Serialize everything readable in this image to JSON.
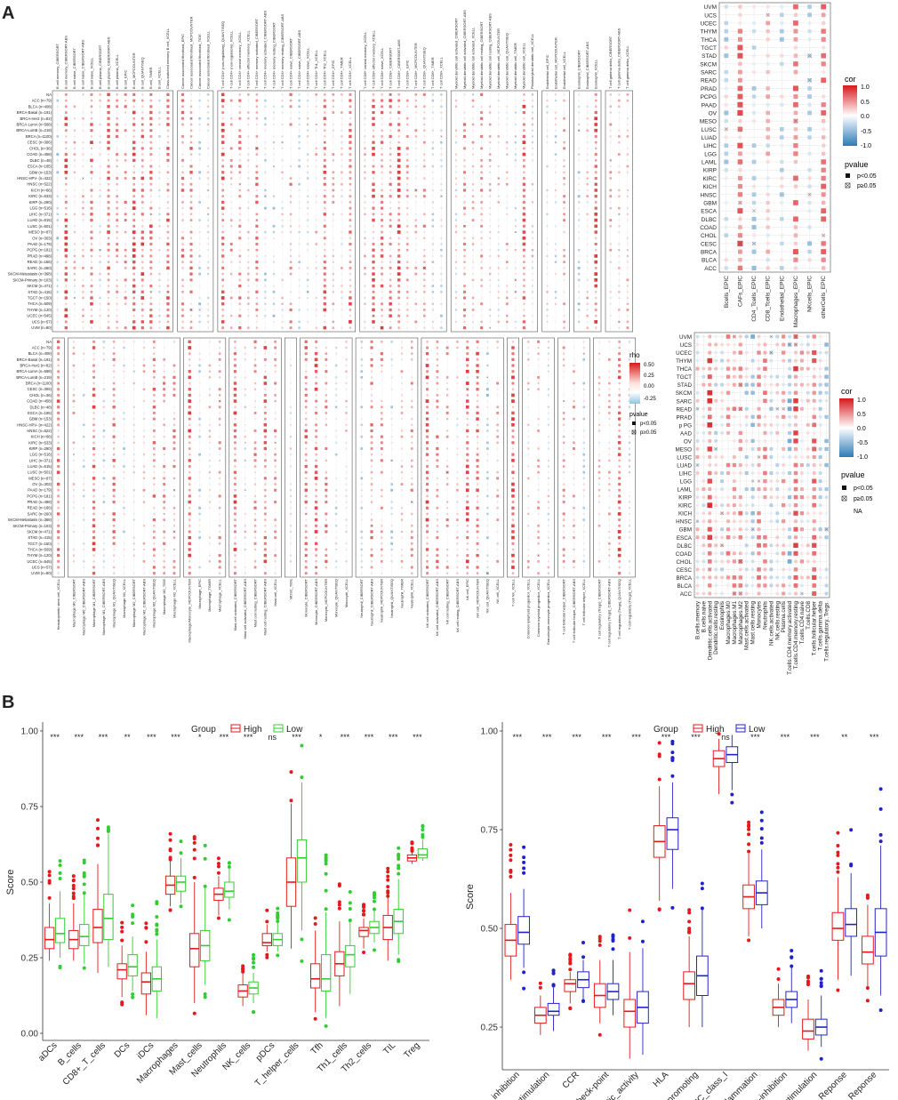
{
  "panels": {
    "a": "A",
    "b": "B"
  },
  "heatmap": {
    "cancers_tr": [
      "NA",
      "ACC (n=79)",
      "BLCA (n=408)",
      "BRCA-Basal (n=191)",
      "BRCA-Her2 (n=82)",
      "BRCA-LumA (n=568)",
      "BRCA-LumB (n=219)",
      "BRCA (n=1100)",
      "CESC (n=306)",
      "CHOL (n=36)",
      "COAD (n=458)",
      "DLBC (n=48)",
      "ESCA (n=185)",
      "GBM (n=153)",
      "HNSC-HPV- (n=422)",
      "HNSC (n=522)",
      "KICH (n=66)",
      "KIRC (n=533)",
      "KIRP (n=290)",
      "LGG (n=516)",
      "LIHC (n=371)",
      "LUAD (n=515)",
      "LUSC (n=501)",
      "MESO (n=87)",
      "OV (n=303)",
      "PAAD (n=179)",
      "PCPG (n=181)",
      "PRAD (n=498)",
      "READ (n=166)",
      "SARC (n=260)",
      "SKCM-Metastasis (n=368)",
      "SKCM-Primary (n=103)",
      "SKCM (n=471)",
      "STAD (n=415)",
      "TGCT (n=150)",
      "THCA (n=509)",
      "THYM (n=120)",
      "UCEC (n=545)",
      "UCS (n=57)",
      "UVM (n=80)"
    ],
    "top_cols": [
      "B cell memory_CIBERSORT",
      "B cell memory_CIBERSORT-ABS",
      "B cell naive_CIBERSORT",
      "B cell naive_CIBERSORT-ABS",
      "B cell naive_XCELL",
      "B cell plasma_CIBERSORT",
      "B cell plasma_CIBERSORT-ABS",
      "B cell plasma_XCELL",
      "B cell_EPIC",
      "B cell_MCPCOUNTER",
      "B cell_QUANTISEQ",
      "B cell_TIMER",
      "B cell_XCELL",
      "Class-switched memory B cell_XCELL",
      "Cancer associated fibroblast_EPIC",
      "Cancer associated fibroblast_MCPCOUNTER",
      "Cancer associated fibroblast_TIDE",
      "Cancer associated fibroblast_XCELL",
      "T cell CD4+ (non-regulatory)_QUANTISEQ",
      "T cell CD4+ (non-regulatory)_XCELL",
      "T cell CD4+ central memory_XCELL",
      "T cell CD4+ effector memory_XCELL",
      "T cell CD4+ memory activated_CIBERSORT",
      "T cell CD4+ memory activated_CIBERSORT-ABS",
      "T cell CD4+ memory resting_CIBERSORT",
      "T cell CD4+ memory resting_CIBERSORT-ABS",
      "T cell CD4+ naive_CIBERSORT",
      "T cell CD4+ naive_CIBERSORT-ABS",
      "T cell CD4+ naive_XCELL",
      "T cell CD4+ Th1_XCELL",
      "T cell CD4+ Th2_XCELL",
      "T cell CD4+_EPIC",
      "T cell CD4+_TIMER",
      "T cell CD4+_XCELL",
      "T cell CD8+ central memory_XCELL",
      "T cell CD8+ effector memory_XCELL",
      "T cell CD8+ naive_XCELL",
      "T cell CD8+_CIBERSORT",
      "T cell CD8+_CIBERSORT-ABS",
      "T cell CD8+_EPIC",
      "T cell CD8+_MCPCOUNTER",
      "T cell CD8+_QUANTISEQ",
      "T cell CD8+_TIMER",
      "T cell CD8+_XCELL",
      "Myeloid dendritic cell activated_CIBERSORT",
      "Myeloid dendritic cell activated_CIBERSORT-ABS",
      "Myeloid dendritic cell activated_XCELL",
      "Myeloid dendritic cell resting_CIBERSORT",
      "Myeloid dendritic cell resting_CIBERSORT-ABS",
      "Myeloid dendritic cell_MCPCOUNTER",
      "Myeloid dendritic cell_QUANTISEQ",
      "Myeloid dendritic cell_TIMER",
      "Myeloid dendritic cell_XCELL",
      "Plasmacytoid dendritic cell_XCELL",
      "Endothelial cell_EPIC",
      "Endothelial cell_MCPCOUNTER",
      "Endothelial cell_XCELL",
      "Eosinophil_CIBERSORT",
      "Eosinophil_CIBERSORT-ABS",
      "Eosinophil_XCELL",
      "T cell gamma delta_CIBERSORT",
      "T cell gamma delta_CIBERSORT-ABS",
      "T cell gamma delta_XCELL"
    ],
    "top_groups": [
      14,
      4,
      16,
      10,
      10,
      3,
      3,
      3
    ],
    "bottom_cols": [
      "Hematopoietic stem cell_XCELL",
      "Macrophage M0_CIBERSORT",
      "Macrophage M0_CIBERSORT-ABS",
      "Macrophage M1_CIBERSORT",
      "Macrophage M1_CIBERSORT-ABS",
      "Macrophage M1_QUANTISEQ",
      "Macrophage M1_XCELL",
      "Macrophage M2_CIBERSORT",
      "Macrophage M2_CIBERSORT-ABS",
      "Macrophage M2_QUANTISEQ",
      "Macrophage M2_TIDE",
      "Macrophage M2_XCELL",
      "Macrophage/Monocyte_MCPCOUNTER",
      "Macrophage_EPIC",
      "Macrophage_TIMER",
      "Macrophage_XCELL",
      "Mast cell activated_CIBERSORT",
      "Mast cell activated_CIBERSORT-ABS",
      "Mast cell resting_CIBERSORT",
      "Mast cell resting_CIBERSORT-ABS",
      "Mast cell_XCELL",
      "MDSC_TIDE",
      "Monocyte_CIBERSORT",
      "Monocyte_CIBERSORT-ABS",
      "Monocyte_MCPCOUNTER",
      "Monocyte_QUANTISEQ",
      "Monocyte_XCELL",
      "Neutrophil_CIBERSORT",
      "Neutrophil_CIBERSORT-ABS",
      "Neutrophil_MCPCOUNTER",
      "Neutrophil_QUANTISEQ",
      "Neutrophil_TIMER",
      "Neutrophil_XCELL",
      "NK cell activated_CIBERSORT",
      "NK cell activated_CIBERSORT-ABS",
      "NK cell resting_CIBERSORT",
      "NK cell resting_CIBERSORT-ABS",
      "NK cell_EPIC",
      "NK cell_MCPCOUNTER",
      "NK cell_QUANTISEQ",
      "NK cell_XCELL",
      "T cell NK_XCELL",
      "Common lymphoid progenitor_XCELL",
      "Common myeloid progenitor_XCELL",
      "Granulocyte-monocyte progenitor_XCELL",
      "T cell follicular helper_CIBERSORT",
      "T cell follicular helper_CIBERSORT-ABS",
      "T cell follicular helper_XCELL",
      "T cell regulatory (Tregs)_CIBERSORT",
      "T cell regulatory (Tregs)_CIBERSORT-ABS",
      "T cell regulatory (Tregs)_QUANTISEQ",
      "T cell regulatory (Tregs)_XCELL"
    ],
    "bottom_groups": [
      1,
      11,
      4,
      5,
      1,
      5,
      6,
      8,
      1,
      3,
      3,
      4
    ],
    "top_legend": {
      "title": "rho",
      "ticks": [
        "0.50",
        "0.25",
        "0.00",
        "-0.25"
      ]
    },
    "pvalue_legend": {
      "title": "pvalue",
      "items": [
        "p<0.05",
        "p≥0.05"
      ]
    },
    "right_cancers": [
      "UVM",
      "UCS",
      "UCEC",
      "THYM",
      "THCA",
      "TGCT",
      "STAD",
      "SKCM",
      "SARC",
      "READ",
      "PRAD",
      "PCPG",
      "PAAD",
      "OV",
      "MESO",
      "LUSC",
      "LUAD",
      "LIHC",
      "LGG",
      "LAML",
      "KIRP",
      "KIRC",
      "KICH",
      "HNSC",
      "GBM",
      "ESCA",
      "DLBC",
      "COAD",
      "CHOL",
      "CESC",
      "BRCA",
      "BLCA",
      "ACC"
    ],
    "epic_cols": [
      "Bcells_EPIC",
      "CAFs_EPIC",
      "CD4_Tcells_EPIC",
      "CD8_Tcells_EPIC",
      "Endothelial_EPIC",
      "Macrophages_EPIC",
      "NKcells_EPIC",
      "otherCells_EPIC"
    ],
    "cib_rows": [
      "UVM",
      "UCS",
      "UCEC",
      "THYM",
      "THCA",
      "TGCT",
      "STAD",
      "SKCM",
      "SARC",
      "READ",
      "PRAD",
      "p PG",
      "AAD",
      "OV",
      "MESO",
      "LUSC",
      "LUAD",
      "LIHC",
      "LGG",
      "LAML",
      "KIRP",
      "KIRC",
      "KICH",
      "HNSC",
      "GBM",
      "ESCA",
      "DLBC",
      "COAD",
      "CHOL",
      "CESC",
      "BRCA",
      "BLCA",
      "ACC"
    ],
    "cib_cols": [
      "B.cells.memory",
      "B.cells.naive",
      "Dendritic.cells.activated",
      "Dendritic.cells.resting",
      "Eosinophils",
      "Macrophages.M0",
      "Macrophages.M1",
      "Macrophages.M2",
      "Mast.cells.activated",
      "Mast.cells.resting",
      "Monocytes",
      "Neutrophils",
      "NK.cells.activated",
      "NK.cells.resting",
      "Plasma.cells",
      "T.cells.CD4.memory.activated",
      "T.cells.CD4.memory.resting",
      "T.cells.CD4.naive",
      "T.cells.CD8",
      "T.cells.follicular.helper",
      "T.cells.gamma.delta",
      "T.cells.regulatory..Tregs."
    ],
    "cor_legend": {
      "title": "cor",
      "ticks": [
        "1.0",
        "0.5",
        "0.0",
        "-0.5",
        "-1.0"
      ]
    },
    "pvalue_legend2": {
      "title": "pvalue",
      "items": [
        "p<0.05",
        "p≥0.05",
        "NA"
      ]
    }
  },
  "chart_data": [
    {
      "type": "box",
      "title": "",
      "xlabel": "",
      "ylabel": "Score",
      "ylim": [
        0,
        1.0
      ],
      "yticks": [
        "0.00",
        "0.25",
        "0.50",
        "0.75",
        "1.00"
      ],
      "legend_title": "Group",
      "series": [
        {
          "name": "High",
          "color": "#e31a1c"
        },
        {
          "name": "Low",
          "color": "#33cc33"
        }
      ],
      "categories": [
        "aDCs",
        "B_cells",
        "CD8+_T_cells",
        "DCs",
        "iDCs",
        "Macrophages",
        "Mast_cells",
        "Neutrophils",
        "NK_cells",
        "pDCs",
        "T_helper_cells",
        "Tfh",
        "Th1_cells",
        "Th2_cells",
        "TIL",
        "Treg"
      ],
      "significance": [
        "***",
        "***",
        "***",
        "**",
        "***",
        "***",
        "*",
        "***",
        "***",
        "ns",
        "***",
        "*",
        "***",
        "***",
        "***",
        "***"
      ],
      "boxes": [
        [
          [
            0.24,
            0.28,
            0.31,
            0.35,
            0.43
          ],
          [
            0.25,
            0.3,
            0.33,
            0.38,
            0.47
          ]
        ],
        [
          [
            0.24,
            0.28,
            0.31,
            0.34,
            0.43
          ],
          [
            0.23,
            0.29,
            0.32,
            0.36,
            0.46
          ]
        ],
        [
          [
            0.2,
            0.3,
            0.35,
            0.41,
            0.56
          ],
          [
            0.22,
            0.31,
            0.38,
            0.46,
            0.66
          ]
        ],
        [
          [
            0.12,
            0.18,
            0.21,
            0.23,
            0.29
          ],
          [
            0.14,
            0.19,
            0.22,
            0.26,
            0.32
          ]
        ],
        [
          [
            0.06,
            0.13,
            0.17,
            0.2,
            0.27
          ],
          [
            0.05,
            0.14,
            0.18,
            0.22,
            0.31
          ]
        ],
        [
          [
            0.42,
            0.46,
            0.49,
            0.52,
            0.57
          ],
          [
            0.43,
            0.47,
            0.5,
            0.52,
            0.58
          ]
        ],
        [
          [
            0.1,
            0.22,
            0.28,
            0.33,
            0.5
          ],
          [
            0.16,
            0.24,
            0.29,
            0.34,
            0.48
          ]
        ],
        [
          [
            0.39,
            0.44,
            0.46,
            0.48,
            0.52
          ],
          [
            0.41,
            0.45,
            0.47,
            0.5,
            0.55
          ]
        ],
        [
          [
            0.09,
            0.12,
            0.14,
            0.16,
            0.2
          ],
          [
            0.1,
            0.13,
            0.15,
            0.17,
            0.2
          ]
        ],
        [
          [
            0.27,
            0.29,
            0.3,
            0.33,
            0.36
          ],
          [
            0.27,
            0.29,
            0.31,
            0.33,
            0.37
          ]
        ],
        [
          [
            0.28,
            0.42,
            0.5,
            0.58,
            0.76
          ],
          [
            0.34,
            0.5,
            0.58,
            0.64,
            0.83
          ]
        ],
        [
          [
            0.07,
            0.15,
            0.18,
            0.23,
            0.34
          ],
          [
            0.05,
            0.14,
            0.18,
            0.26,
            0.4
          ]
        ],
        [
          [
            0.09,
            0.19,
            0.23,
            0.27,
            0.37
          ],
          [
            0.13,
            0.22,
            0.26,
            0.29,
            0.37
          ]
        ],
        [
          [
            0.28,
            0.32,
            0.34,
            0.35,
            0.38
          ],
          [
            0.3,
            0.33,
            0.35,
            0.37,
            0.41
          ]
        ],
        [
          [
            0.24,
            0.31,
            0.35,
            0.39,
            0.45
          ],
          [
            0.26,
            0.33,
            0.37,
            0.41,
            0.51
          ]
        ],
        [
          [
            0.56,
            0.57,
            0.58,
            0.59,
            0.6
          ],
          [
            0.57,
            0.58,
            0.59,
            0.61,
            0.64
          ]
        ]
      ]
    },
    {
      "type": "box",
      "title": "",
      "xlabel": "",
      "ylabel": "Score",
      "ylim": [
        0.16,
        1.0
      ],
      "yticks": [
        "0.25",
        "0.50",
        "0.75",
        "1.00"
      ],
      "legend_title": "Group",
      "series": [
        {
          "name": "High",
          "color": "#e31a1c"
        },
        {
          "name": "Low",
          "color": "#2222cc"
        }
      ],
      "categories": [
        "APC_co_inhibition",
        "APC_co_stimulation",
        "CCR",
        "Check-point",
        "Cytolytic_activity",
        "HLA",
        "Inflammation-promoting",
        "MHC_class_I",
        "Parainflammation",
        "T_cell_co-inhibition",
        "T_cell_co-stimulation",
        "Type_I_IFN_Reponse",
        "Type_II_IFN_Reponse"
      ],
      "significance": [
        "***",
        "***",
        "***",
        "***",
        "***",
        "***",
        "***",
        "ns",
        "***",
        "***",
        "***",
        "**",
        "***"
      ],
      "boxes": [
        [
          [
            0.37,
            0.43,
            0.47,
            0.51,
            0.59
          ],
          [
            0.4,
            0.46,
            0.49,
            0.53,
            0.6
          ]
        ],
        [
          [
            0.23,
            0.26,
            0.28,
            0.3,
            0.33
          ],
          [
            0.24,
            0.28,
            0.29,
            0.31,
            0.35
          ]
        ],
        [
          [
            0.31,
            0.34,
            0.36,
            0.37,
            0.39
          ],
          [
            0.32,
            0.35,
            0.37,
            0.39,
            0.42
          ]
        ],
        [
          [
            0.26,
            0.3,
            0.33,
            0.36,
            0.42
          ],
          [
            0.28,
            0.32,
            0.34,
            0.36,
            0.42
          ]
        ],
        [
          [
            0.17,
            0.25,
            0.29,
            0.32,
            0.44
          ],
          [
            0.18,
            0.26,
            0.3,
            0.34,
            0.45
          ]
        ],
        [
          [
            0.57,
            0.68,
            0.72,
            0.76,
            0.86
          ],
          [
            0.6,
            0.7,
            0.75,
            0.78,
            0.87
          ]
        ],
        [
          [
            0.25,
            0.32,
            0.36,
            0.39,
            0.48
          ],
          [
            0.25,
            0.33,
            0.38,
            0.43,
            0.55
          ]
        ],
        [
          [
            0.84,
            0.91,
            0.93,
            0.95,
            0.98
          ],
          [
            0.85,
            0.92,
            0.94,
            0.96,
            0.99
          ]
        ],
        [
          [
            0.48,
            0.55,
            0.58,
            0.61,
            0.69
          ],
          [
            0.5,
            0.56,
            0.59,
            0.62,
            0.7
          ]
        ],
        [
          [
            0.25,
            0.28,
            0.3,
            0.32,
            0.36
          ],
          [
            0.26,
            0.3,
            0.32,
            0.34,
            0.4
          ]
        ],
        [
          [
            0.19,
            0.22,
            0.24,
            0.27,
            0.32
          ],
          [
            0.2,
            0.23,
            0.25,
            0.27,
            0.33
          ]
        ],
        [
          [
            0.37,
            0.47,
            0.5,
            0.54,
            0.63
          ],
          [
            0.38,
            0.48,
            0.51,
            0.55,
            0.64
          ]
        ],
        [
          [
            0.35,
            0.41,
            0.44,
            0.48,
            0.56
          ],
          [
            0.33,
            0.43,
            0.49,
            0.55,
            0.71
          ]
        ]
      ]
    }
  ]
}
